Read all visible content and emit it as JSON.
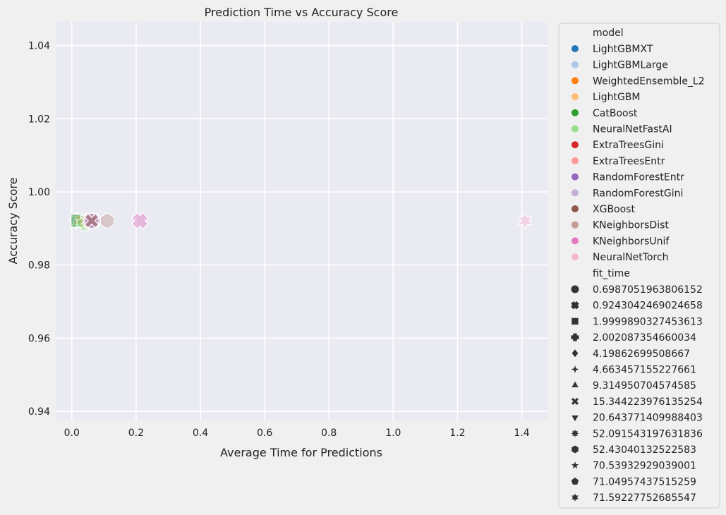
{
  "chart_data": {
    "type": "scatter",
    "title": "Prediction Time vs Accuracy Score",
    "xlabel": "Average Time for Predictions",
    "ylabel": "Accuracy Score",
    "xlim": [
      -0.05,
      1.48
    ],
    "ylim": [
      0.9375,
      1.0465
    ],
    "xticks": [
      0.0,
      0.2,
      0.4,
      0.6,
      0.8,
      1.0,
      1.2,
      1.4
    ],
    "xtick_labels": [
      "0.0",
      "0.2",
      "0.4",
      "0.6",
      "0.8",
      "1.0",
      "1.2",
      "1.4"
    ],
    "yticks": [
      0.94,
      0.96,
      0.98,
      1.0,
      1.02,
      1.04
    ],
    "ytick_labels": [
      "0.94",
      "0.96",
      "0.98",
      "1.00",
      "1.02",
      "1.04"
    ],
    "grid": true,
    "legend_placement": "outside-right",
    "hue_title": "model",
    "style_title": "fit_time",
    "models": [
      {
        "name": "LightGBMXT",
        "color": "#1f77b4"
      },
      {
        "name": "LightGBMLarge",
        "color": "#aec7e8"
      },
      {
        "name": "WeightedEnsemble_L2",
        "color": "#ff7f0e"
      },
      {
        "name": "LightGBM",
        "color": "#ffbb78"
      },
      {
        "name": "CatBoost",
        "color": "#2ca02c"
      },
      {
        "name": "NeuralNetFastAI",
        "color": "#98df8a"
      },
      {
        "name": "ExtraTreesGini",
        "color": "#d62728"
      },
      {
        "name": "ExtraTreesEntr",
        "color": "#ff9896"
      },
      {
        "name": "RandomForestEntr",
        "color": "#9467bd"
      },
      {
        "name": "RandomForestGini",
        "color": "#c5b0d5"
      },
      {
        "name": "XGBoost",
        "color": "#8c564b"
      },
      {
        "name": "KNeighborsDist",
        "color": "#c49c94"
      },
      {
        "name": "KNeighborsUnif",
        "color": "#e377c2"
      },
      {
        "name": "NeuralNetTorch",
        "color": "#f7b6d2"
      }
    ],
    "fit_times": [
      {
        "label": "0.6987051963806152",
        "marker": "circle"
      },
      {
        "label": "0.9243042469024658",
        "marker": "x"
      },
      {
        "label": "1.9999890327453613",
        "marker": "square"
      },
      {
        "label": "2.002087354660034",
        "marker": "plus"
      },
      {
        "label": "4.19862699508667",
        "marker": "diamond"
      },
      {
        "label": "4.663457155227661",
        "marker": "star4"
      },
      {
        "label": "9.314950704574585",
        "marker": "triangle-up"
      },
      {
        "label": "15.344223976135254",
        "marker": "x-thin"
      },
      {
        "label": "20.643771409988403",
        "marker": "triangle-down"
      },
      {
        "label": "52.091543197631836",
        "marker": "star8"
      },
      {
        "label": "52.43040132522583",
        "marker": "hexagon"
      },
      {
        "label": "70.53932929039001",
        "marker": "star5"
      },
      {
        "label": "71.04957437515259",
        "marker": "pentagon"
      },
      {
        "label": "71.59227752685547",
        "marker": "star6"
      }
    ],
    "points": [
      {
        "model": "LightGBMXT",
        "fit_time_index": 4,
        "x": 0.012,
        "y": 0.9921
      },
      {
        "model": "LightGBMLarge",
        "fit_time_index": 5,
        "x": 0.015,
        "y": 0.9921
      },
      {
        "model": "WeightedEnsemble_L2",
        "fit_time_index": 8,
        "x": 0.028,
        "y": 0.9921
      },
      {
        "model": "LightGBM",
        "fit_time_index": 6,
        "x": 0.022,
        "y": 0.9921
      },
      {
        "model": "CatBoost",
        "fit_time_index": 2,
        "x": 0.018,
        "y": 0.9921
      },
      {
        "model": "NeuralNetFastAI",
        "fit_time_index": 3,
        "x": 0.04,
        "y": 0.9915
      },
      {
        "model": "ExtraTreesGini",
        "fit_time_index": 0,
        "x": 0.062,
        "y": 0.9921
      },
      {
        "model": "ExtraTreesEntr",
        "fit_time_index": 1,
        "x": 0.055,
        "y": 0.9921
      },
      {
        "model": "RandomForestEntr",
        "fit_time_index": 0,
        "x": 0.065,
        "y": 0.9921
      },
      {
        "model": "RandomForestGini",
        "fit_time_index": 0,
        "x": 0.06,
        "y": 0.9921
      },
      {
        "model": "XGBoost",
        "fit_time_index": 7,
        "x": 0.062,
        "y": 0.9921
      },
      {
        "model": "KNeighborsDist",
        "fit_time_index": 10,
        "x": 0.11,
        "y": 0.9921
      },
      {
        "model": "KNeighborsUnif",
        "fit_time_index": 1,
        "x": 0.212,
        "y": 0.9921
      },
      {
        "model": "NeuralNetTorch",
        "fit_time_index": 13,
        "x": 1.41,
        "y": 0.9921
      }
    ]
  }
}
